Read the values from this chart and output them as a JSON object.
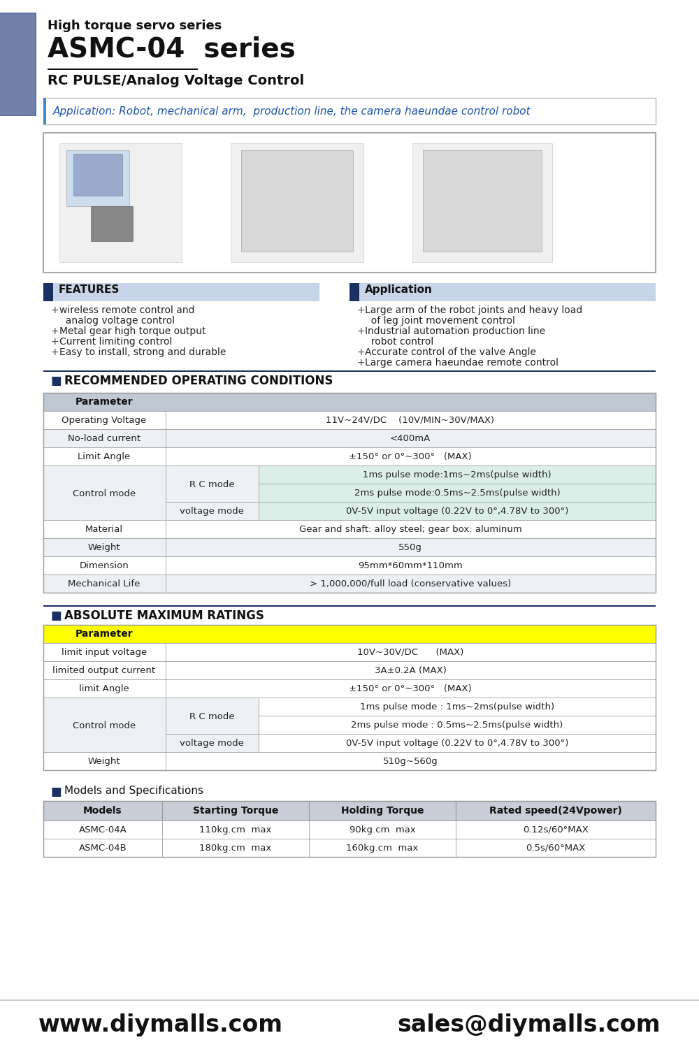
{
  "title_line1": "High torque servo series",
  "title_line2": "ASMC-04  series",
  "title_line3": "RC PULSE/Analog Voltage Control",
  "application_text": "Application: Robot, mechanical arm,  production line, the camera haeundae control robot",
  "features_title": "FEATURES",
  "features_items": [
    "wireless remote control and",
    "  analog voltage control",
    "Metal gear high torque output",
    "Current limiting control",
    "Easy to install, strong and durable"
  ],
  "application_title": "Application",
  "application_items": [
    "Large arm of the robot joints and heavy load",
    "  of leg joint movement control",
    "Industrial automation production line",
    "  robot control",
    "Accurate control of the valve Angle",
    "Large camera haeundae remote control"
  ],
  "rec_title": "RECOMMENDED OPERATING CONDITIONS",
  "abs_title": "ABSOLUTE MAXIMUM RATINGS",
  "models_title": "Models and Specifications",
  "footer_left": "www.diymalls.com",
  "footer_right": "sales@diymalls.com",
  "bg_color": "#ffffff",
  "sidebar_color": "#8899bb",
  "header_bg": "#c8d4e8",
  "dark_blue": "#1a3060",
  "yellow_bg": "#ffff00",
  "light_gray_bg": "#e8ecf0",
  "green_bg": "#dceee8",
  "border_color": "#999999"
}
